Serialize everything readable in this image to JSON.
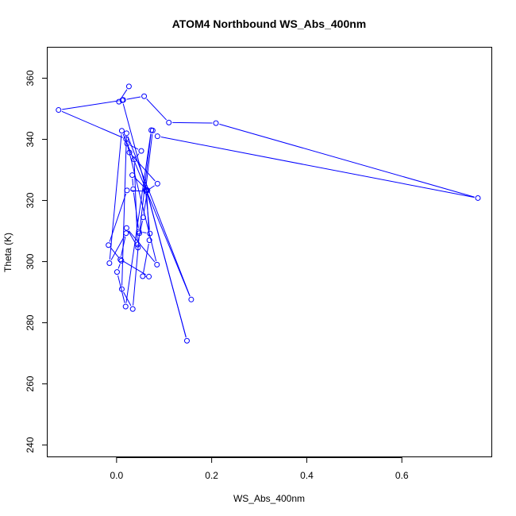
{
  "chart_data": {
    "type": "line",
    "title": "ATOM4 Northbound WS_Abs_400nm",
    "xlabel": "WS_Abs_400nm",
    "ylabel": "Theta (K)",
    "xlim": [
      -0.145,
      0.79
    ],
    "ylim": [
      236.0,
      370.0
    ],
    "xticks": [
      0.0,
      0.2,
      0.4,
      0.6
    ],
    "xtick_labels": [
      "0.0",
      "0.2",
      "0.4",
      "0.6"
    ],
    "yticks": [
      240,
      260,
      280,
      300,
      320,
      340,
      360
    ],
    "yticks_labels": [
      "240",
      "260",
      "280",
      "300",
      "320",
      "340",
      "360"
    ],
    "series": [
      {
        "color": "#0000ff",
        "marker": "open-circle",
        "x": [
          0.026,
          0.005,
          0.014,
          0.058,
          0.11,
          0.209,
          0.76,
          0.086,
          0.076,
          0.061,
          0.07,
          0.047,
          0.035,
          0.033,
          0.065,
          0.056,
          0.044,
          0.037,
          0.052,
          0.022,
          0.027,
          0.086,
          0.062,
          0.022,
          -0.017,
          0.01,
          0.001,
          0.019,
          0.073,
          0.048,
          0.034,
          0.011,
          0.021,
          0.157,
          0.011,
          -0.015,
          0.02,
          0.008,
          0.068,
          0.055,
          0.069,
          0.063,
          0.148,
          0.012,
          -0.122,
          0.02,
          0.085,
          0.021,
          0.045
        ],
        "y": [
          357.3,
          352.3,
          352.9,
          354.1,
          345.5,
          345.3,
          320.8,
          341.0,
          342.9,
          323.4,
          309.2,
          309.8,
          323.7,
          328.3,
          323.3,
          314.5,
          305.6,
          333.4,
          336.2,
          338.6,
          335.7,
          325.5,
          323.0,
          323.3,
          305.4,
          300.3,
          296.6,
          285.3,
          343.0,
          309.3,
          284.5,
          291.0,
          342.0,
          287.6,
          342.8,
          299.5,
          309.3,
          300.7,
          295.1,
          295.2,
          307.0,
          323.5,
          274.1,
          352.8,
          349.6,
          340.1,
          299.0,
          311.0,
          304.6
        ]
      }
    ]
  }
}
